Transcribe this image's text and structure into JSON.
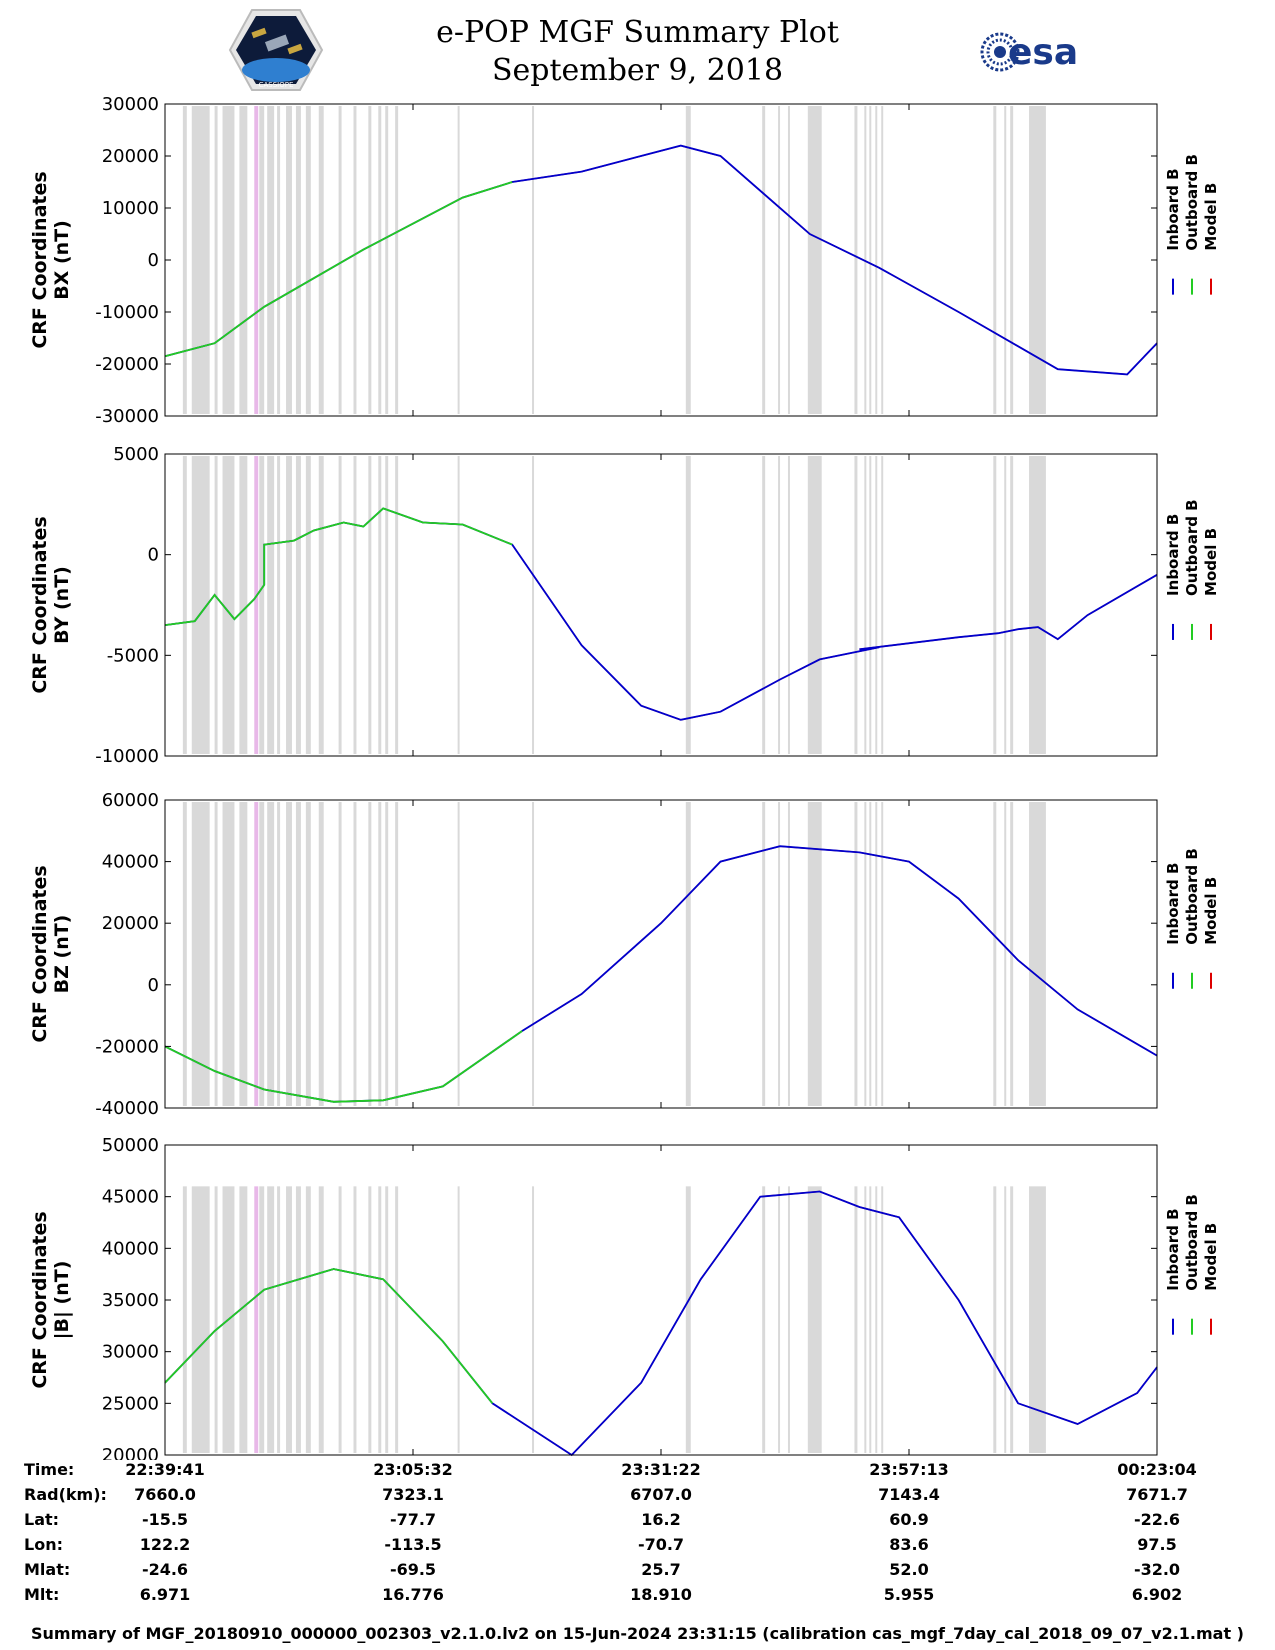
{
  "header": {
    "title_line1": "e-POP MGF Summary Plot",
    "title_line2": "September 9, 2018",
    "logo_left_text": "CASSIOPE",
    "logo_right_text": "esa"
  },
  "legend": {
    "labels": [
      "Inboard B",
      "Outboard B",
      "Model B"
    ],
    "colors": [
      "#0000cc",
      "#22cc22",
      "#dd0000"
    ]
  },
  "colors": {
    "inboard": "#0000cc",
    "outboard": "#22cc22",
    "model": "#dd0000",
    "gap": "#d9d9d9",
    "gap_alt": "#e8b8e8"
  },
  "chart_data": [
    {
      "type": "line",
      "ylabel": "CRF Coordinates\nBX (nT)",
      "ylabel_line1": "CRF Coordinates",
      "ylabel_line2": "BX (nT)",
      "ylim": [
        -30000,
        30000
      ],
      "yticks": [
        -30000,
        -20000,
        -10000,
        0,
        10000,
        20000,
        30000
      ],
      "x": [
        0,
        0.05,
        0.1,
        0.2,
        0.3,
        0.35,
        0.42,
        0.52,
        0.56,
        0.65,
        0.72,
        0.8,
        0.9,
        0.97,
        1.0
      ],
      "y": [
        -18500,
        -16000,
        -9000,
        2000,
        12000,
        15000,
        17000,
        22000,
        20000,
        5000,
        -1500,
        -10000,
        -21000,
        -22000,
        -16000
      ],
      "transition": 0.35
    },
    {
      "type": "line",
      "ylabel": "CRF Coordinates\nBY (nT)",
      "ylabel_line1": "CRF Coordinates",
      "ylabel_line2": "BY (nT)",
      "ylim": [
        -10000,
        5000
      ],
      "yticks": [
        -10000,
        -5000,
        0,
        5000
      ],
      "x": [
        0,
        0.03,
        0.05,
        0.07,
        0.09,
        0.1,
        0.1,
        0.13,
        0.15,
        0.18,
        0.2,
        0.22,
        0.26,
        0.3,
        0.35,
        0.42,
        0.48,
        0.52,
        0.56,
        0.62,
        0.66,
        0.72,
        0.7,
        0.8,
        0.84,
        0.86,
        0.88,
        0.9,
        0.93,
        1.0
      ],
      "y": [
        -3500,
        -3300,
        -2000,
        -3200,
        -2200,
        -1500,
        500,
        700,
        1200,
        1600,
        1400,
        2300,
        1600,
        1500,
        500,
        -4500,
        -7500,
        -8200,
        -7800,
        -6200,
        -5200,
        -4600,
        -4700,
        -4100,
        -3900,
        -3700,
        -3600,
        -4200,
        -3000,
        -1000
      ],
      "transition": 0.35
    },
    {
      "type": "line",
      "ylabel": "CRF Coordinates\nBZ (nT)",
      "ylabel_line1": "CRF Coordinates",
      "ylabel_line2": "BZ (nT)",
      "ylim": [
        -40000,
        60000
      ],
      "yticks": [
        -40000,
        -20000,
        0,
        20000,
        40000,
        60000
      ],
      "x": [
        0,
        0.05,
        0.1,
        0.17,
        0.22,
        0.28,
        0.36,
        0.42,
        0.5,
        0.56,
        0.62,
        0.7,
        0.75,
        0.8,
        0.86,
        0.92,
        1.0
      ],
      "y": [
        -20000,
        -28000,
        -34000,
        -38000,
        -37500,
        -33000,
        -15000,
        -3000,
        20000,
        40000,
        45000,
        43000,
        40000,
        28000,
        8000,
        -8000,
        -23000
      ],
      "transition": 0.36
    },
    {
      "type": "line",
      "ylabel": "CRF Coordinates\n|B| (nT)",
      "ylabel_line1": "CRF Coordinates",
      "ylabel_line2": "|B| (nT)",
      "ylim": [
        20000,
        50000
      ],
      "yticks": [
        20000,
        25000,
        30000,
        35000,
        40000,
        45000,
        50000
      ],
      "x": [
        0,
        0.05,
        0.1,
        0.17,
        0.22,
        0.28,
        0.33,
        0.41,
        0.48,
        0.54,
        0.6,
        0.66,
        0.7,
        0.74,
        0.8,
        0.86,
        0.92,
        0.98,
        1.0
      ],
      "y": [
        27000,
        32000,
        36000,
        38000,
        37000,
        31000,
        25000,
        20000,
        27000,
        37000,
        45000,
        45500,
        44000,
        43000,
        35000,
        25000,
        23000,
        26000,
        28500
      ],
      "transition": 0.33
    }
  ],
  "gaps": [
    [
      0.018,
      0.022
    ],
    [
      0.027,
      0.045
    ],
    [
      0.05,
      0.053
    ],
    [
      0.058,
      0.07
    ],
    [
      0.075,
      0.083
    ],
    [
      0.095,
      0.1
    ],
    [
      0.103,
      0.11
    ],
    [
      0.113,
      0.116
    ],
    [
      0.122,
      0.128
    ],
    [
      0.132,
      0.137
    ],
    [
      0.142,
      0.147
    ],
    [
      0.155,
      0.16
    ],
    [
      0.175,
      0.178
    ],
    [
      0.19,
      0.193
    ],
    [
      0.205,
      0.208
    ],
    [
      0.215,
      0.218
    ],
    [
      0.222,
      0.225
    ],
    [
      0.232,
      0.235
    ],
    [
      0.295,
      0.297
    ],
    [
      0.37,
      0.372
    ],
    [
      0.525,
      0.53
    ],
    [
      0.602,
      0.605
    ],
    [
      0.618,
      0.62
    ],
    [
      0.628,
      0.63
    ],
    [
      0.648,
      0.662
    ],
    [
      0.695,
      0.698
    ],
    [
      0.705,
      0.707
    ],
    [
      0.71,
      0.712
    ],
    [
      0.716,
      0.718
    ],
    [
      0.722,
      0.724
    ],
    [
      0.835,
      0.838
    ],
    [
      0.846,
      0.848
    ],
    [
      0.852,
      0.855
    ],
    [
      0.871,
      0.888
    ]
  ],
  "special_gaps": [
    [
      0.09,
      0.094
    ]
  ],
  "time_axis": {
    "ticks": [
      "22:39:41",
      "23:05:32",
      "23:31:22",
      "23:57:13",
      "00:23:04"
    ],
    "rows": [
      {
        "label": "Time:",
        "values": [
          "22:39:41",
          "23:05:32",
          "23:31:22",
          "23:57:13",
          "00:23:04"
        ]
      },
      {
        "label": "Rad(km):",
        "values": [
          "7660.0",
          "7323.1",
          "6707.0",
          "7143.4",
          "7671.7"
        ]
      },
      {
        "label": "Lat:",
        "values": [
          "-15.5",
          "-77.7",
          "16.2",
          "60.9",
          "-22.6"
        ]
      },
      {
        "label": "Lon:",
        "values": [
          "122.2",
          "-113.5",
          "-70.7",
          "83.6",
          "97.5"
        ]
      },
      {
        "label": "Mlat:",
        "values": [
          "-24.6",
          "-69.5",
          "25.7",
          "52.0",
          "-32.0"
        ]
      },
      {
        "label": "Mlt:",
        "values": [
          "6.971",
          "16.776",
          "18.910",
          "5.955",
          "6.902"
        ]
      }
    ]
  },
  "footer": {
    "text": "Summary of MGF_20180910_000000_002303_v2.1.0.lv2 on 15-Jun-2024 23:31:15 (calibration cas_mgf_7day_cal_2018_09_07_v2.1.mat )"
  }
}
